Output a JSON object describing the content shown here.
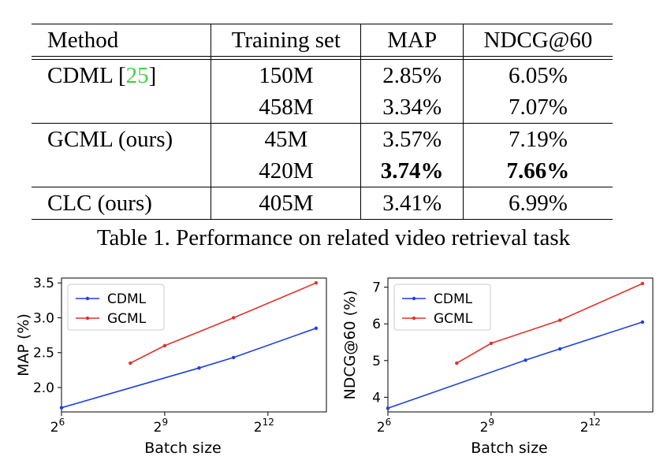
{
  "table": {
    "headers": [
      "Method",
      "Training set",
      "MAP",
      "NDCG@60"
    ],
    "rows": [
      {
        "method": "CDML ",
        "cite": "25",
        "method_suffix": "]",
        "cite_open": "[",
        "training": "150M",
        "map": "2.85%",
        "ndcg": "6.05%"
      },
      {
        "method": "",
        "training": "458M",
        "map": "3.34%",
        "ndcg": "7.07%"
      },
      {
        "method": "GCML (ours)",
        "training": "45M",
        "map": "3.57%",
        "ndcg": "7.19%"
      },
      {
        "method": "",
        "training": "420M",
        "map": "3.74%",
        "ndcg": "7.66%"
      },
      {
        "method": "CLC (ours)",
        "training": "405M",
        "map": "3.41%",
        "ndcg": "6.99%"
      }
    ]
  },
  "caption": "Table 1. Performance on related video retrieval task",
  "colors": {
    "cdml": "#1f3fe0",
    "gcml": "#e0322b",
    "cite": "#3dd23d"
  },
  "chart_data": [
    {
      "type": "line",
      "xlabel": "Batch size",
      "ylabel": "MAP (%)",
      "xscale": "log2",
      "xlim": [
        6,
        13.7
      ],
      "ylim": [
        1.65,
        3.57
      ],
      "x_ticks": [
        6,
        9,
        12
      ],
      "x_tick_base": "2",
      "x_tick_exps": [
        "6",
        "9",
        "12"
      ],
      "y_ticks": [
        "2.0",
        "2.5",
        "3.0",
        "3.5"
      ],
      "y_tick_values": [
        2.0,
        2.5,
        3.0,
        3.5
      ],
      "legend": "top-left",
      "series": [
        {
          "name": "CDML",
          "log2_x": [
            6,
            10,
            11,
            13.4
          ],
          "values": [
            1.71,
            2.28,
            2.43,
            2.85
          ]
        },
        {
          "name": "GCML",
          "log2_x": [
            8,
            9,
            11,
            13.4
          ],
          "values": [
            2.35,
            2.6,
            3.0,
            3.5
          ]
        }
      ]
    },
    {
      "type": "line",
      "xlabel": "Batch size",
      "ylabel": "NDCG@60 (%)",
      "xscale": "log2",
      "xlim": [
        6,
        13.7
      ],
      "ylim": [
        3.6,
        7.25
      ],
      "x_ticks": [
        6,
        9,
        12
      ],
      "x_tick_base": "2",
      "x_tick_exps": [
        "6",
        "9",
        "12"
      ],
      "y_ticks": [
        "4",
        "5",
        "6",
        "7"
      ],
      "y_tick_values": [
        4,
        5,
        6,
        7
      ],
      "legend": "top-left",
      "series": [
        {
          "name": "CDML",
          "log2_x": [
            6,
            10,
            11,
            13.4
          ],
          "values": [
            3.7,
            5.01,
            5.32,
            6.05
          ]
        },
        {
          "name": "GCML",
          "log2_x": [
            8,
            9,
            11,
            13.4
          ],
          "values": [
            4.93,
            5.47,
            6.1,
            7.1
          ]
        }
      ]
    }
  ]
}
